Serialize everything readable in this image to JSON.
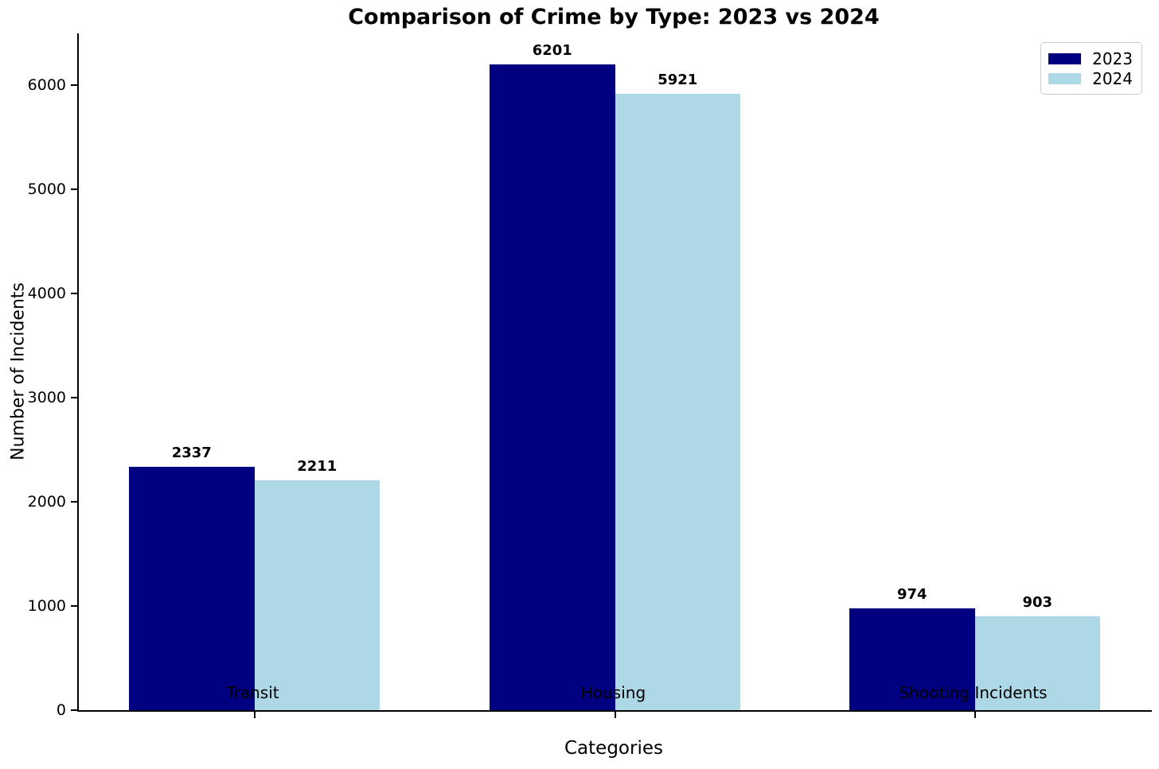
{
  "chart_data": {
    "type": "bar",
    "title": "Comparison of Crime by Type: 2023 vs 2024",
    "xlabel": "Categories",
    "ylabel": "Number of Incidents",
    "categories": [
      "Transit",
      "Housing",
      "Shooting Incidents"
    ],
    "series": [
      {
        "name": "2023",
        "color": "#000080",
        "values": [
          2337,
          6201,
          974
        ]
      },
      {
        "name": "2024",
        "color": "#ADD8E6",
        "values": [
          2211,
          5921,
          903
        ]
      }
    ],
    "yticks": [
      0,
      1000,
      2000,
      3000,
      4000,
      5000,
      6000
    ],
    "ylim": [
      0,
      6500
    ],
    "grid": false,
    "legend_position": "upper right",
    "value_labels_shown": true
  }
}
